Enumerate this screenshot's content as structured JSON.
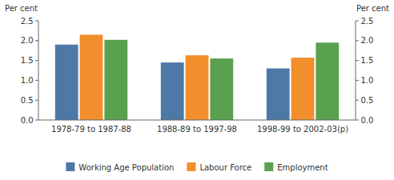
{
  "chart_data": {
    "type": "bar",
    "categories": [
      "1978-79 to 1987-88",
      "1988-89 to 1997-98",
      "1998-99 to 2002-03(p)"
    ],
    "series": [
      {
        "name": "Working Age Population",
        "values": [
          1.9,
          1.45,
          1.3
        ]
      },
      {
        "name": "Labour Force",
        "values": [
          2.15,
          1.63,
          1.57
        ]
      },
      {
        "name": "Employment",
        "values": [
          2.02,
          1.55,
          1.95
        ]
      }
    ],
    "ylabel": "Per cent",
    "y2label": "Per cent",
    "ylim": [
      0.0,
      2.5
    ],
    "yticks": [
      {
        "value": 0.0,
        "label": "0.0"
      },
      0.5,
      {
        "value": 1.0,
        "label": "1.0"
      },
      1.5,
      {
        "value": 2.0,
        "label": "2.0"
      },
      2.5
    ],
    "y2lim": [
      0.0,
      2.5
    ],
    "y2ticks": [
      {
        "value": 0.0,
        "label": "0.0"
      },
      0.5,
      {
        "value": 1.0,
        "label": "1.0"
      },
      1.5,
      {
        "value": 2.0,
        "label": "2.0"
      },
      2.5
    ],
    "grid": false,
    "legend": "bottom"
  }
}
